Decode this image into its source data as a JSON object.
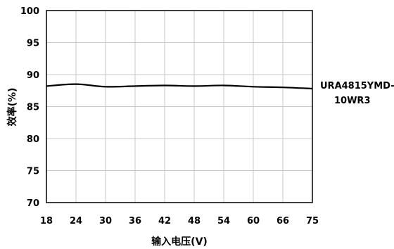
{
  "chart_data": {
    "type": "line",
    "title": "",
    "xlabel": "输入电压(V)",
    "ylabel": "效率(%)",
    "x": [
      18,
      24,
      30,
      36,
      42,
      48,
      54,
      60,
      66,
      75
    ],
    "x_ticks": [
      "18",
      "24",
      "30",
      "36",
      "42",
      "48",
      "54",
      "60",
      "66",
      "75"
    ],
    "y_ticks": [
      "100",
      "95",
      "90",
      "85",
      "80",
      "75",
      "70"
    ],
    "ylim": [
      70,
      100
    ],
    "grid": true,
    "series": [
      {
        "name": "URA4815YMD-10WR3",
        "label_lines": [
          "URA4815YMD-",
          "10WR3"
        ],
        "values": [
          88.2,
          88.5,
          88.1,
          88.2,
          88.3,
          88.2,
          88.3,
          88.1,
          88.0,
          87.8
        ]
      }
    ],
    "colors": {
      "line": "#000000",
      "grid": "#c8c8c8"
    }
  }
}
